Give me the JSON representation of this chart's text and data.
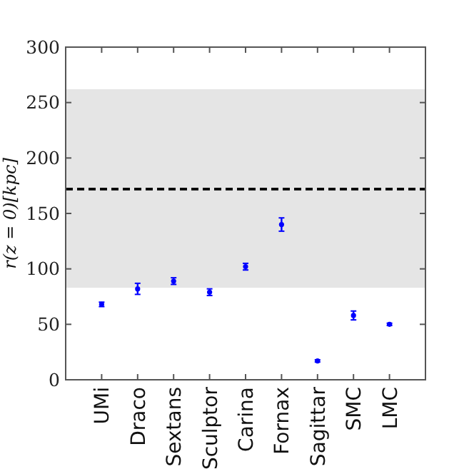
{
  "chart_data": {
    "type": "scatter",
    "ylabel": "r(z = 0)[kpc]",
    "categories": [
      "UMi",
      "Draco",
      "Sextans",
      "Sculptor",
      "Carina",
      "Fornax",
      "Sagittar",
      "SMC",
      "LMC"
    ],
    "series": [
      {
        "color": "#0000ff",
        "values": [
          68,
          82,
          89,
          79,
          102,
          140,
          17,
          58,
          50
        ],
        "errors": [
          2,
          5,
          3,
          3,
          3,
          6,
          1,
          4,
          1
        ]
      }
    ],
    "ylim": [
      0,
      300
    ],
    "yticks": [
      0,
      50,
      100,
      150,
      200,
      250,
      300
    ],
    "grid": false,
    "marker": "circle",
    "ref_lines": [
      {
        "axis": "y",
        "value": 172,
        "color": "#000000",
        "line_style": "dashed"
      }
    ],
    "bands": [
      {
        "axis": "y",
        "from": 83,
        "to": 262,
        "color": "#e5e5e5"
      }
    ]
  }
}
